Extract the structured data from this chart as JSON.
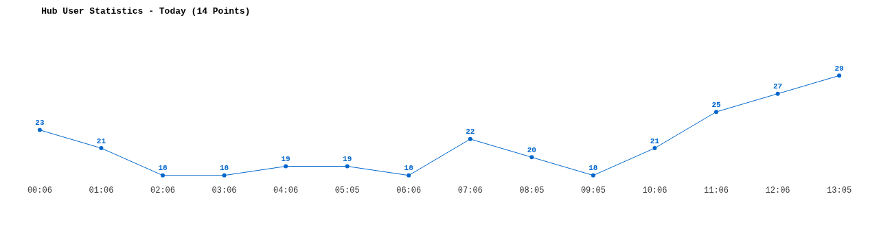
{
  "chart_data": {
    "type": "line",
    "title": "Hub User Statistics - Today (14 Points)",
    "categories": [
      "00:06",
      "01:06",
      "02:06",
      "03:06",
      "04:06",
      "05:05",
      "06:06",
      "07:06",
      "08:05",
      "09:05",
      "10:06",
      "11:06",
      "12:06",
      "13:05"
    ],
    "series": [
      {
        "color": "#0066cc",
        "values": [
          23,
          21,
          18,
          18,
          19,
          19,
          18,
          22,
          20,
          18,
          21,
          25,
          27,
          29
        ]
      }
    ],
    "tick_labels": "x",
    "data_labels": true,
    "grid": false,
    "legend": false,
    "marker": "circle",
    "line_style": "solid"
  }
}
